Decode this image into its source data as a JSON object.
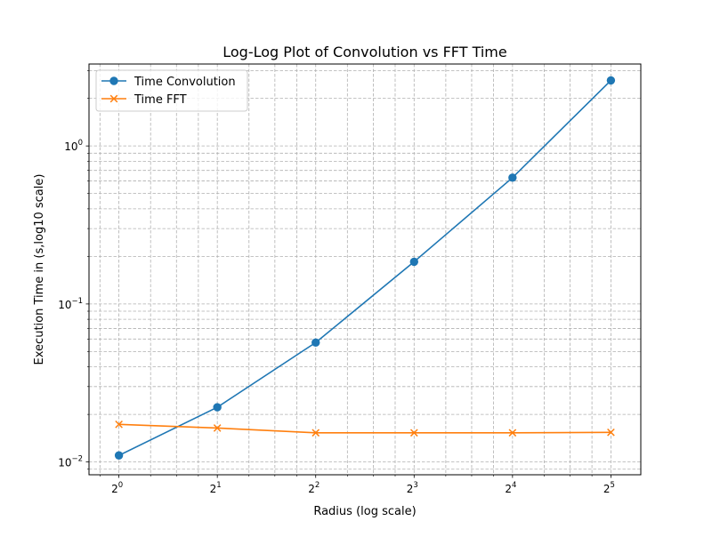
{
  "chart_data": {
    "type": "line",
    "title": "Log-Log Plot of Convolution vs FFT Time",
    "xlabel": "Radius (log scale)",
    "ylabel": "Execution Time in (s,log10 scale)",
    "xscale": "log2",
    "yscale": "log10",
    "x": [
      1,
      2,
      4,
      8,
      16,
      32
    ],
    "x_tick_labels": [
      {
        "base": "2",
        "exp": "0"
      },
      {
        "base": "2",
        "exp": "1"
      },
      {
        "base": "2",
        "exp": "2"
      },
      {
        "base": "2",
        "exp": "3"
      },
      {
        "base": "2",
        "exp": "4"
      },
      {
        "base": "2",
        "exp": "5"
      }
    ],
    "y_tick_labels": [
      {
        "value": 0.01,
        "base": "10",
        "exp": "−2"
      },
      {
        "value": 0.1,
        "base": "10",
        "exp": "−1"
      },
      {
        "value": 1,
        "base": "10",
        "exp": "0"
      }
    ],
    "xlim": [
      0.81,
      39.5
    ],
    "ylim": [
      0.0083,
      3.3
    ],
    "grid": true,
    "grid_style": "dashed",
    "legend_position": "top-left",
    "series": [
      {
        "name": "Time Convolution",
        "color": "#1f77b4",
        "marker": "circle",
        "values": [
          0.011,
          0.0222,
          0.057,
          0.185,
          0.63,
          2.6
        ]
      },
      {
        "name": "Time FFT",
        "color": "#ff7f0e",
        "marker": "x",
        "values": [
          0.0173,
          0.0164,
          0.0153,
          0.0153,
          0.0153,
          0.0154
        ]
      }
    ]
  }
}
